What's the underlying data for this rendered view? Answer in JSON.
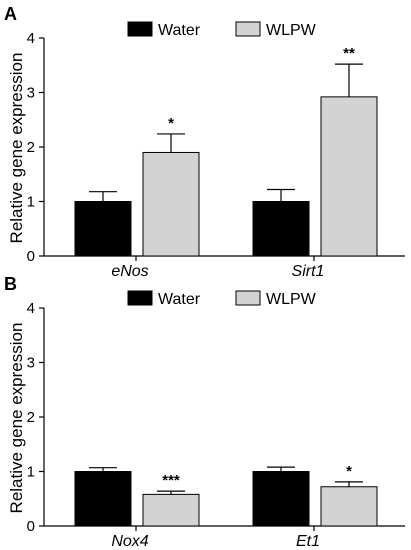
{
  "chart_data": [
    {
      "panel": "A",
      "type": "bar",
      "ylabel": "Relative gene expression",
      "ylim": [
        0,
        4
      ],
      "yticks": [
        "0",
        "1",
        "2",
        "3",
        "4"
      ],
      "categories": [
        "eNos",
        "Sirt1"
      ],
      "legend_position": "top",
      "series": [
        {
          "name": "Water",
          "color": "#000000",
          "values": [
            1.0,
            1.0
          ],
          "errors": [
            0.18,
            0.22
          ]
        },
        {
          "name": "WLPW",
          "color": "#d3d3d3",
          "values": [
            1.9,
            2.92
          ],
          "errors": [
            0.34,
            0.6
          ]
        }
      ],
      "annotations": [
        {
          "category": "eNos",
          "series": "WLPW",
          "text": "*"
        },
        {
          "category": "Sirt1",
          "series": "WLPW",
          "text": "**"
        }
      ]
    },
    {
      "panel": "B",
      "type": "bar",
      "ylabel": "Relative gene expression",
      "ylim": [
        0,
        4
      ],
      "yticks": [
        "0",
        "1",
        "2",
        "3",
        "4"
      ],
      "categories": [
        "Nox4",
        "Et1"
      ],
      "legend_position": "top",
      "series": [
        {
          "name": "Water",
          "color": "#000000",
          "values": [
            1.0,
            1.0
          ],
          "errors": [
            0.07,
            0.08
          ]
        },
        {
          "name": "WLPW",
          "color": "#d3d3d3",
          "values": [
            0.58,
            0.72
          ],
          "errors": [
            0.06,
            0.09
          ]
        }
      ],
      "annotations": [
        {
          "category": "Nox4",
          "series": "WLPW",
          "text": "***"
        },
        {
          "category": "Et1",
          "series": "WLPW",
          "text": "*"
        }
      ]
    }
  ]
}
